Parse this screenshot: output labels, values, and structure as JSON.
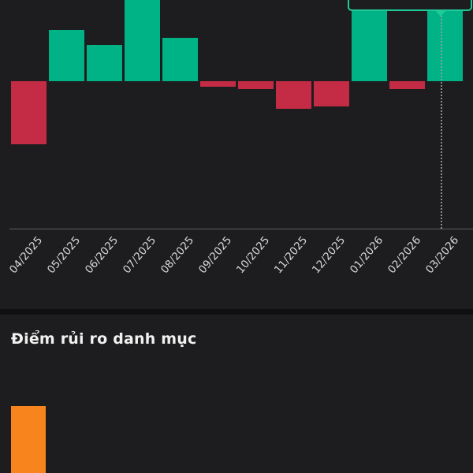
{
  "screen": {
    "background": "#1d1d1f"
  },
  "performance_chart": {
    "selected_category": "03/2026",
    "tooltip_visible": true,
    "tooltip_text": ""
  },
  "risk_section": {
    "title": "Điểm rủi ro danh mục"
  },
  "chart_data": [
    {
      "type": "bar",
      "categories": [
        "04/2025",
        "05/2025",
        "06/2025",
        "07/2025",
        "08/2025",
        "09/2025",
        "10/2025",
        "11/2025",
        "12/2025",
        "01/2026",
        "02/2026",
        "03/2026"
      ],
      "values": [
        -80,
        65,
        46,
        105,
        55,
        -7,
        -10,
        -35,
        -32,
        103,
        -10,
        90
      ],
      "units": "relative units estimated from pixels; no y-axis labels or gridlines visible; tallest bars cut off at top of screenshot",
      "ylim": [
        -187,
        103
      ],
      "grid": false,
      "legend": "none",
      "positive_color": "#00b386",
      "negative_color": "#c42b45",
      "selected_index": 11,
      "guideline_color": "#9aa0a6",
      "tooltip_border_color": "#1ecb98",
      "axis_color": "#5e5e64",
      "label_color": "#d8d8d8"
    },
    {
      "type": "bar",
      "title": "Điểm rủi ro danh mục",
      "categories": [
        ""
      ],
      "values": [
        85
      ],
      "units": "single orange bar, value unknown — bar cut off at bottom edge of screenshot",
      "bar_color": "#f8841d",
      "grid": false,
      "legend": "none"
    }
  ]
}
